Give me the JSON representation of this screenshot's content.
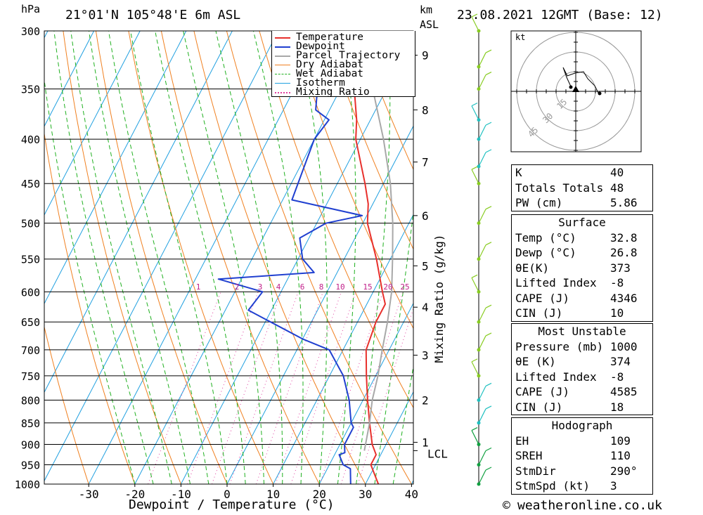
{
  "header": {
    "pressure_unit": "hPa",
    "location": "21°01'N 105°48'E 6m ASL",
    "height_unit_top": "km",
    "height_unit_bottom": "ASL",
    "datetime": "23.08.2021 12GMT (Base: 12)"
  },
  "legend": {
    "items": [
      {
        "label": "Temperature",
        "color": "#e8302c",
        "style": "solid"
      },
      {
        "label": "Dewpoint",
        "color": "#2040d0",
        "style": "solid"
      },
      {
        "label": "Parcel Trajectory",
        "color": "#a8a8a8",
        "style": "solid"
      },
      {
        "label": "Dry Adiabat",
        "color": "#f08020",
        "style": "solid"
      },
      {
        "label": "Wet Adiabat",
        "color": "#20b020",
        "style": "dashed"
      },
      {
        "label": "Isotherm",
        "color": "#20a0e0",
        "style": "solid"
      },
      {
        "label": "Mixing Ratio",
        "color": "#e040a0",
        "style": "dotted"
      }
    ]
  },
  "chart_data": {
    "type": "line",
    "title": "21°01'N 105°48'E 6m ASL",
    "xlabel": "Dewpoint / Temperature (°C)",
    "ylabel": "hPa",
    "right_label": "Mixing Ratio (g/kg)",
    "xlim": [
      -40,
      40
    ],
    "ylim": [
      1000,
      300
    ],
    "x_ticks": [
      -30,
      -20,
      -10,
      0,
      10,
      20,
      30,
      40
    ],
    "pressure_ticks": [
      300,
      350,
      400,
      450,
      500,
      550,
      600,
      650,
      700,
      750,
      800,
      850,
      900,
      950,
      1000
    ],
    "height_ticks": [
      {
        "label": "9",
        "p": 320
      },
      {
        "label": "8",
        "p": 370
      },
      {
        "label": "7",
        "p": 425
      },
      {
        "label": "6",
        "p": 490
      },
      {
        "label": "5",
        "p": 560
      },
      {
        "label": "4",
        "p": 625
      },
      {
        "label": "3",
        "p": 710
      },
      {
        "label": "2",
        "p": 800
      },
      {
        "label": "1",
        "p": 895
      },
      {
        "label": "LCL",
        "p": 915
      }
    ],
    "mixing_ratio_labels": [
      "1",
      "2",
      "3",
      "4",
      "6",
      "8",
      "10",
      "15",
      "20",
      "25"
    ],
    "series": [
      {
        "name": "Temperature",
        "color": "#e8302c",
        "p": [
          1000,
          950,
          925,
          900,
          850,
          800,
          750,
          700,
          650,
          620,
          600,
          550,
          500,
          475,
          450,
          400,
          380,
          350
        ],
        "t": [
          32.8,
          29,
          29,
          27,
          24,
          21,
          18,
          15,
          14,
          14,
          12,
          7,
          1,
          -1,
          -4,
          -11,
          -13,
          -17
        ]
      },
      {
        "name": "Dewpoint",
        "color": "#2040d0",
        "p": [
          1000,
          960,
          950,
          925,
          920,
          900,
          860,
          850,
          800,
          750,
          700,
          680,
          630,
          600,
          580,
          570,
          550,
          520,
          500,
          490,
          470,
          400,
          380,
          370,
          350,
          320,
          300
        ],
        "t": [
          26.8,
          25,
          23,
          21,
          22,
          21,
          21,
          20,
          17,
          13,
          7,
          0,
          -15,
          -14,
          -25,
          -5,
          -9,
          -12,
          -8,
          -1,
          -18,
          -20,
          -19,
          -23,
          -25,
          -27,
          -28
        ]
      },
      {
        "name": "Parcel Trajectory",
        "color": "#a8a8a8",
        "p": [
          915,
          850,
          800,
          750,
          700,
          650,
          600,
          550,
          500,
          450,
          400,
          350
        ],
        "t": [
          26,
          24,
          22,
          20.5,
          18.5,
          16.5,
          14,
          10.5,
          6.5,
          1.5,
          -5,
          -13
        ]
      }
    ]
  },
  "wind_barbs": {
    "pressures": [
      300,
      330,
      350,
      380,
      400,
      430,
      450,
      500,
      550,
      600,
      650,
      700,
      750,
      800,
      850,
      900,
      950,
      1000
    ]
  },
  "hodograph": {
    "unit": "kt",
    "ring_labels": [
      "15",
      "30",
      "45"
    ]
  },
  "indices": {
    "rows": [
      {
        "label": "K",
        "value": "40"
      },
      {
        "label": "Totals Totals",
        "value": "48"
      },
      {
        "label": "PW (cm)",
        "value": "5.86"
      }
    ]
  },
  "surface": {
    "title": "Surface",
    "rows": [
      {
        "label": "Temp (°C)",
        "value": "32.8"
      },
      {
        "label": "Dewp (°C)",
        "value": "26.8"
      },
      {
        "label": "θE(K)",
        "value": "373"
      },
      {
        "label": "Lifted Index",
        "value": "-8"
      },
      {
        "label": "CAPE (J)",
        "value": "4346"
      },
      {
        "label": "CIN (J)",
        "value": "10"
      }
    ]
  },
  "most_unstable": {
    "title": "Most Unstable",
    "rows": [
      {
        "label": "Pressure (mb)",
        "value": "1000"
      },
      {
        "label": "θE (K)",
        "value": "374"
      },
      {
        "label": "Lifted Index",
        "value": "-8"
      },
      {
        "label": "CAPE (J)",
        "value": "4585"
      },
      {
        "label": "CIN (J)",
        "value": "18"
      }
    ]
  },
  "hodo_params": {
    "title": "Hodograph",
    "rows": [
      {
        "label": "EH",
        "value": "109"
      },
      {
        "label": "SREH",
        "value": "110"
      },
      {
        "label": "StmDir",
        "value": "290°"
      },
      {
        "label": "StmSpd (kt)",
        "value": "3"
      }
    ]
  },
  "footer": {
    "copyright_symbol": "©",
    "site": "weatheronline.co.uk"
  }
}
